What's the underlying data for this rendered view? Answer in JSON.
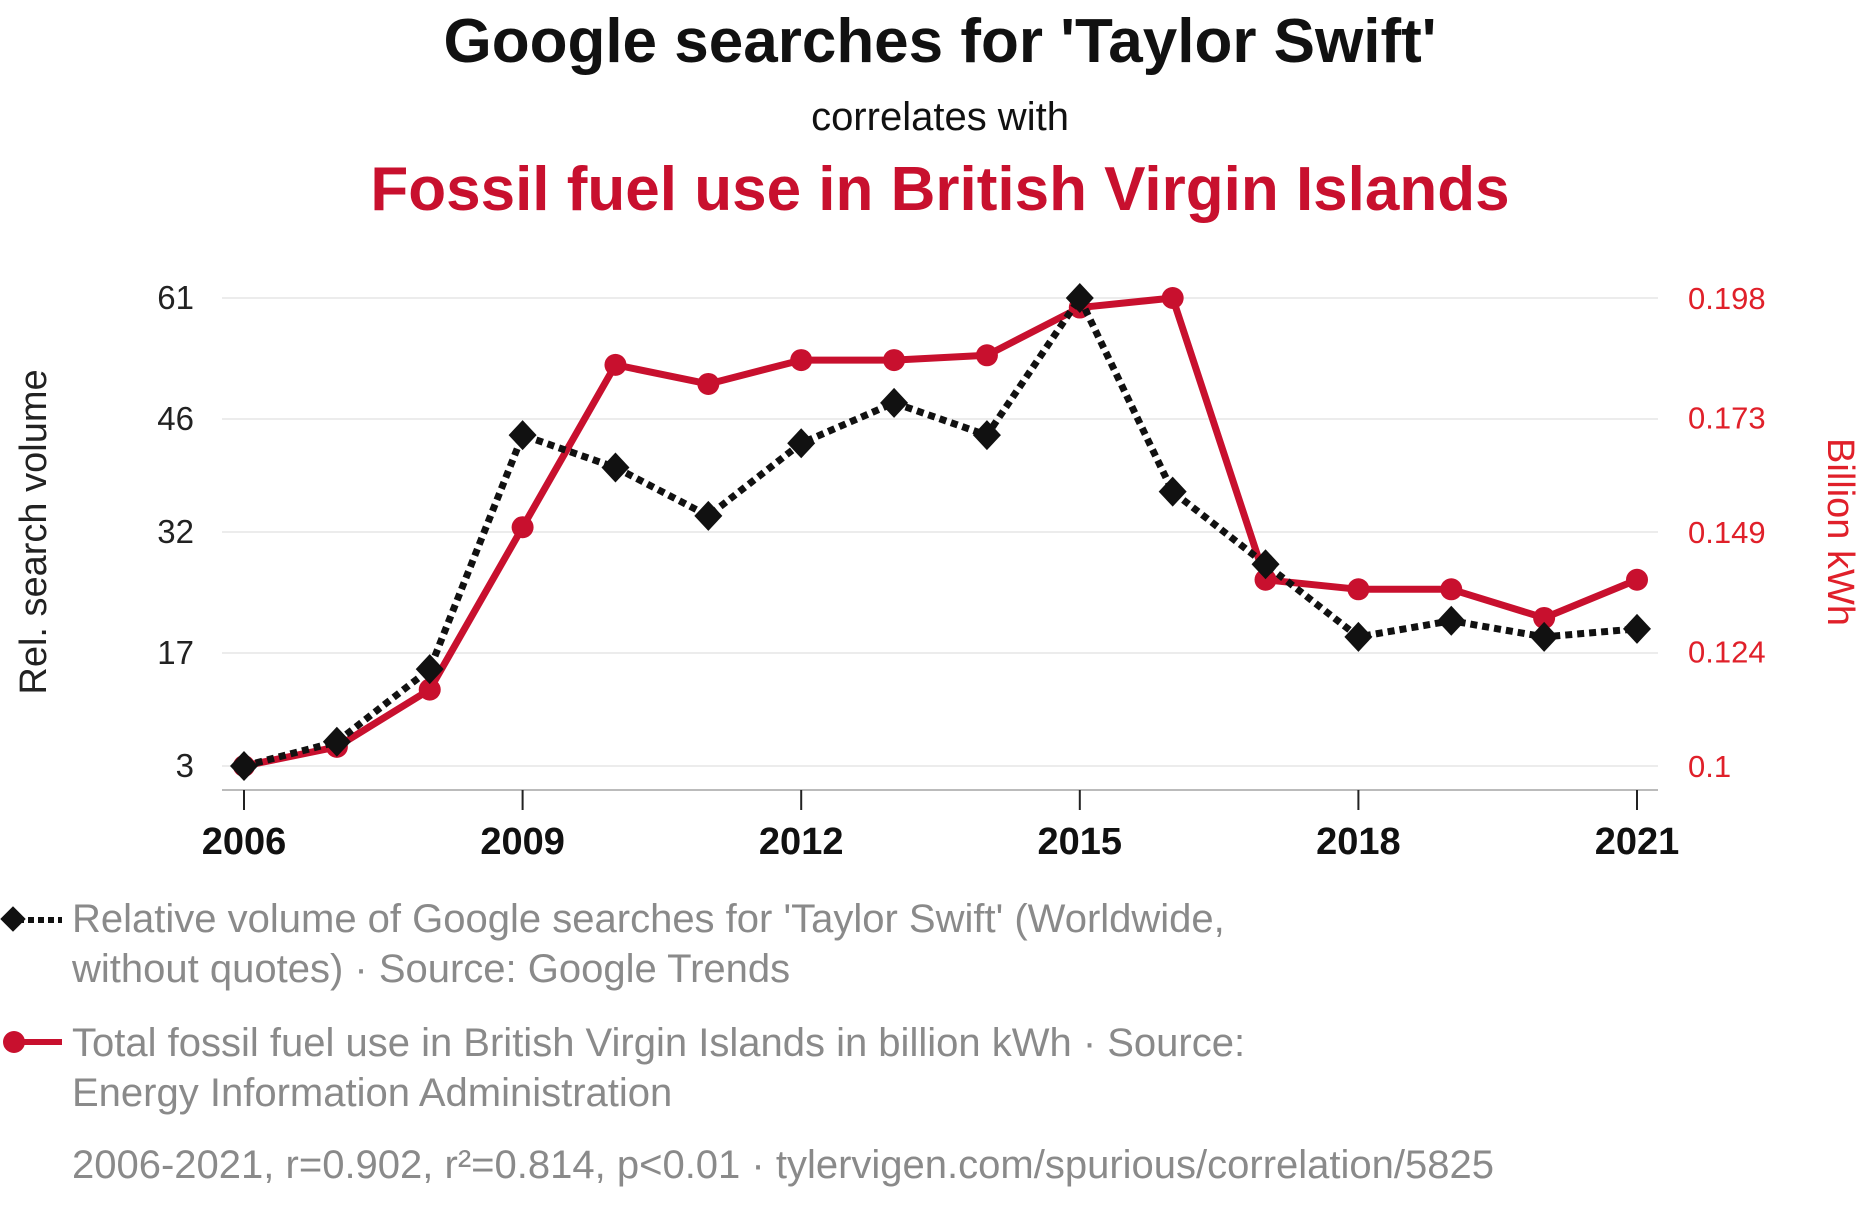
{
  "chart_data": {
    "type": "line",
    "title": "Google searches for 'Taylor Swift'",
    "subtitle": "correlates with",
    "title2": "Fossil fuel use in British Virgin Islands",
    "x": [
      2006,
      2007,
      2008,
      2009,
      2010,
      2011,
      2012,
      2013,
      2014,
      2015,
      2016,
      2017,
      2018,
      2019,
      2020,
      2021
    ],
    "x_ticks": [
      "2006",
      "2009",
      "2012",
      "2015",
      "2018",
      "2021"
    ],
    "ylabel_left": "Rel. search volume",
    "ylabel_right": "Billion kWh",
    "yticks_left": [
      "3",
      "17",
      "32",
      "46",
      "61"
    ],
    "yticks_right": [
      "0.1",
      "0.124",
      "0.149",
      "0.173",
      "0.198"
    ],
    "ylim_left": [
      3,
      61
    ],
    "ylim_right": [
      0.1,
      0.198
    ],
    "grid": true,
    "series": [
      {
        "name": "Relative volume of Google searches for 'Taylor Swift'",
        "axis": "left",
        "color": "#111111",
        "style": "dotted",
        "marker": "diamond",
        "values": [
          3,
          6,
          15,
          44,
          40,
          34,
          43,
          48,
          44,
          61,
          37,
          28,
          19,
          21,
          19,
          20
        ]
      },
      {
        "name": "Total fossil fuel use in British Virgin Islands in billion kWh",
        "axis": "right",
        "color": "#c8102e",
        "style": "solid",
        "marker": "circle",
        "values": [
          0.1,
          0.104,
          0.116,
          0.15,
          0.184,
          0.18,
          0.185,
          0.185,
          0.186,
          0.196,
          0.198,
          0.139,
          0.137,
          0.137,
          0.131,
          0.139
        ]
      }
    ],
    "legend": [
      {
        "line1": "Relative volume of Google searches for 'Taylor Swift' (Worldwide,",
        "line2": "without quotes) · Source: Google Trends"
      },
      {
        "line1": "Total fossil fuel use in British Virgin Islands in billion kWh · Source:",
        "line2": "Energy Information Administration"
      }
    ],
    "footer": "2006-2021, r=0.902, r²=0.814, p<0.01 · tylervigen.com/spurious/correlation/5825"
  }
}
